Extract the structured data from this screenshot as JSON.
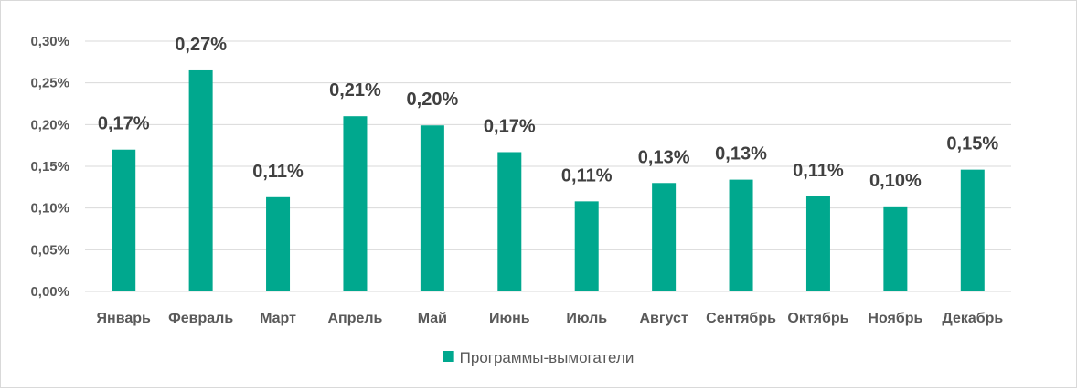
{
  "chart_data": {
    "type": "bar",
    "title": "",
    "xlabel": "",
    "ylabel": "",
    "categories": [
      "Январь",
      "Февраль",
      "Март",
      "Апрель",
      "Май",
      "Июнь",
      "Июль",
      "Август",
      "Сентябрь",
      "Октябрь",
      "Ноябрь",
      "Декабрь"
    ],
    "series": [
      {
        "name": "Программы-вымогатели",
        "values": [
          0.0017,
          0.00265,
          0.00113,
          0.0021,
          0.00199,
          0.00167,
          0.00108,
          0.0013,
          0.00134,
          0.00114,
          0.00102,
          0.00146
        ],
        "data_labels": [
          "0,17%",
          "0,27%",
          "0,11%",
          "0,21%",
          "0,20%",
          "0,17%",
          "0,11%",
          "0,13%",
          "0,13%",
          "0,11%",
          "0,10%",
          "0,15%"
        ],
        "color": "#00A88E"
      }
    ],
    "ylim": [
      0,
      0.003
    ],
    "yticks": [
      0,
      0.0005,
      0.001,
      0.0015,
      0.002,
      0.0025,
      0.003
    ],
    "ytick_labels": [
      "0,00%",
      "0,05%",
      "0,10%",
      "0,15%",
      "0,20%",
      "0,25%",
      "0,30%"
    ],
    "grid": true,
    "legend": "bottom",
    "colors": {
      "bar": "#00A88E",
      "grid": "#d9d9d9",
      "axis_text": "#595959",
      "data_label": "#404040"
    }
  }
}
